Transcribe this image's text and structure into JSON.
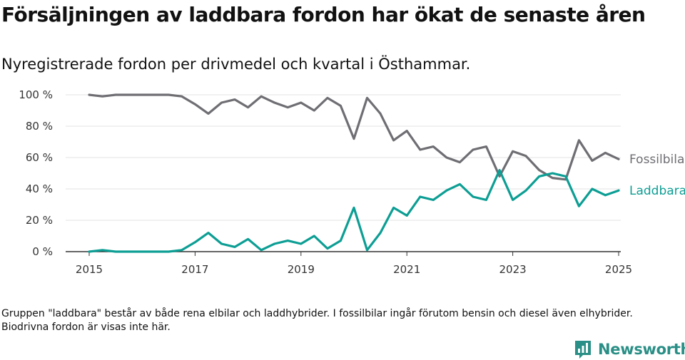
{
  "header": {
    "title": "Försäljningen av laddbara fordon har ökat de senaste åren",
    "subtitle": "Nyregistrerade fordon per drivmedel och kvartal i Östhammar."
  },
  "note": "Gruppen \"laddbara\" består av både rena elbilar och laddhybrider. I fossilbilar ingår förutom bensin och diesel även elhybrider. Biodrivna fordon är visas inte här.",
  "brand": {
    "name": "Newsworthy",
    "icon": "newsworthy-logo-icon",
    "color": "#2a8f86"
  },
  "chart_data": {
    "type": "line",
    "ylim": [
      0,
      100
    ],
    "yticks": [
      "0 %",
      "20 %",
      "40 %",
      "60 %",
      "80 %",
      "100 %"
    ],
    "ytick_values": [
      0,
      20,
      40,
      60,
      80,
      100
    ],
    "xlim": [
      2015,
      2025
    ],
    "xticks": [
      "2015",
      "2017",
      "2019",
      "2021",
      "2023",
      "2025"
    ],
    "xtick_values": [
      2015,
      2017,
      2019,
      2021,
      2023,
      2025
    ],
    "grid": true,
    "x": [
      2015.0,
      2015.25,
      2015.5,
      2015.75,
      2016.0,
      2016.25,
      2016.5,
      2016.75,
      2017.0,
      2017.25,
      2017.5,
      2017.75,
      2018.0,
      2018.25,
      2018.5,
      2018.75,
      2019.0,
      2019.25,
      2019.5,
      2019.75,
      2020.0,
      2020.25,
      2020.5,
      2020.75,
      2021.0,
      2021.25,
      2021.5,
      2021.75,
      2022.0,
      2022.25,
      2022.5,
      2022.75,
      2023.0,
      2023.25,
      2023.5,
      2023.75,
      2024.0,
      2024.25,
      2024.5,
      2024.75,
      2025.0
    ],
    "series": [
      {
        "name": "Fossilbilar",
        "color": "#6e6e73",
        "values": [
          100,
          99,
          100,
          100,
          100,
          100,
          100,
          99,
          94,
          88,
          95,
          97,
          92,
          99,
          95,
          92,
          95,
          90,
          98,
          93,
          72,
          98,
          88,
          71,
          77,
          65,
          67,
          60,
          57,
          65,
          67,
          48,
          64,
          61,
          52,
          47,
          46,
          71,
          58,
          63,
          59
        ]
      },
      {
        "name": "Laddbara",
        "color": "#0c9e94",
        "values": [
          0,
          1,
          0,
          0,
          0,
          0,
          0,
          1,
          6,
          12,
          5,
          3,
          8,
          1,
          5,
          7,
          5,
          10,
          2,
          7,
          28,
          1,
          12,
          28,
          23,
          35,
          33,
          39,
          43,
          35,
          33,
          52,
          33,
          39,
          48,
          50,
          48,
          29,
          40,
          36,
          39
        ]
      }
    ]
  }
}
